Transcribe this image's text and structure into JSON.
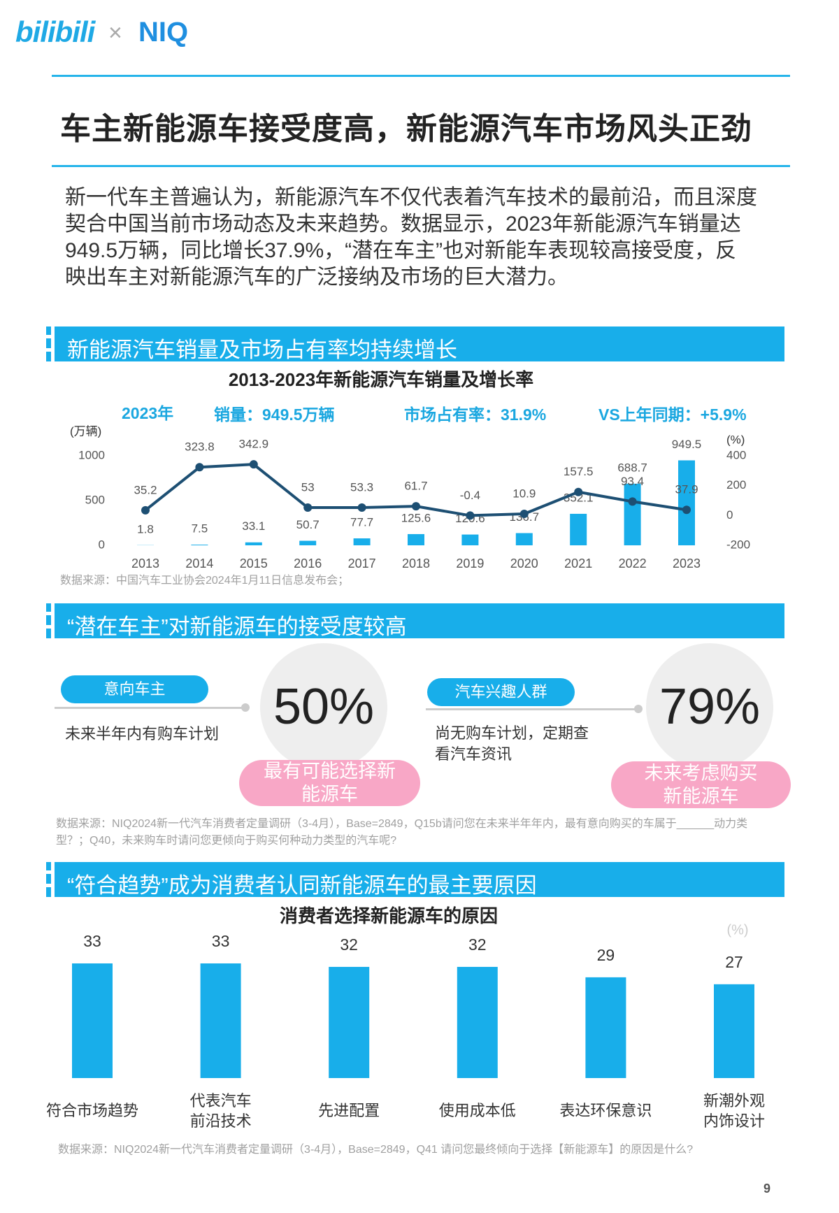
{
  "header": {
    "logo_left": "bilibili",
    "logo_right": "NIQ",
    "title": "车主新能源车接受度高，新能源汽车市场风头正劲"
  },
  "intro": "新一代车主普遍认为，新能源汽车不仅代表着汽车技术的最前沿，而且深度契合中国当前市场动态及未来趋势。数据显示，2023年新能源汽车销量达949.5万辆，同比增长37.9%，“潜在车主”也对新能车表现较高接受度，反映出车主对新能源汽车的广泛接纳及市场的巨大潜力。",
  "sections": [
    {
      "heading": "新能源汽车销量及市场占有率均持续增长"
    },
    {
      "heading": "“潜在车主”对新能源车的接受度较高"
    },
    {
      "heading": "“符合趋势”成为消费者认同新能源车的最主要原因"
    }
  ],
  "chart_data": [
    {
      "type": "combo",
      "title": "2013-2023年新能源汽车销量及增长率",
      "annotations": [
        "2023年",
        "销量：949.5万辆",
        "市场占有率：31.9%",
        "VS上年同期：+5.9%"
      ],
      "y_label": "(万辆)",
      "y2_label": "(%)",
      "categories": [
        "2013",
        "2014",
        "2015",
        "2016",
        "2017",
        "2018",
        "2019",
        "2020",
        "2021",
        "2022",
        "2023"
      ],
      "series": [
        {
          "type": "bar",
          "color": "#18aeea",
          "values": [
            1.8,
            7.5,
            33.1,
            50.7,
            77.7,
            125.6,
            120.6,
            136.7,
            352.1,
            688.7,
            949.5
          ]
        },
        {
          "type": "line",
          "axis": "y2",
          "color": "#1d4f73",
          "values": [
            35.2,
            323.8,
            342.9,
            53,
            53.3,
            61.7,
            -0.4,
            10.9,
            157.5,
            93.4,
            37.9
          ]
        }
      ],
      "ylim": [
        0,
        1000
      ],
      "yticks": [
        0,
        500,
        1000
      ],
      "y2lim": [
        -200,
        400
      ],
      "y2ticks": [
        -200,
        0,
        200,
        400
      ]
    },
    {
      "type": "bar",
      "title": "消费者选择新能源车的原因",
      "y_label": "(%)",
      "categories": [
        "符合市场趋势",
        "代表汽车\n前沿技术",
        "先进配置",
        "使用成本低",
        "表达环保意识",
        "新潮外观\n内饰设计"
      ],
      "values": [
        33,
        33,
        32,
        32,
        29,
        27
      ],
      "color": "#18aeea"
    }
  ],
  "cards": [
    {
      "tag": "意向车主",
      "desc": "未来半年内有购车计划",
      "stat": "50%",
      "conclusion": "最有可能选择新\n能源车"
    },
    {
      "tag": "汽车兴趣人群",
      "desc": "尚无购车计划，定期查\n看汽车资讯",
      "stat": "79%",
      "conclusion": "未来考虑购买\n新能源车"
    }
  ],
  "sources": [
    "数据来源：中国汽车工业协会2024年1月11日信息发布会；",
    "数据来源：NIQ2024新一代汽车消费者定量调研（3-4月），Base=2849，Q15b请问您在未来半年年内，最有意向购买的车属于______动力类型？；Q40，未来购车时请问您更倾向于购买何种动力类型的汽车呢?",
    "数据来源：NIQ2024新一代汽车消费者定量调研（3-4月），Base=2849，Q41 请问您最终倾向于选择【新能源车】的原因是什么?"
  ],
  "page_number": "9"
}
